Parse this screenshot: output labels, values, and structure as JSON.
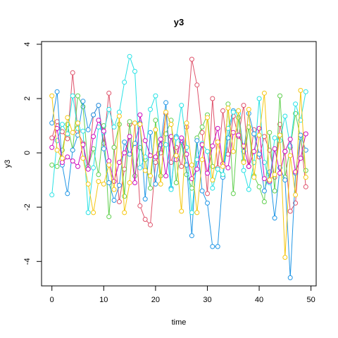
{
  "chart_data": {
    "type": "line",
    "title": "y3",
    "xlabel": "time",
    "ylabel": "y3",
    "xlim": [
      -2,
      51
    ],
    "ylim": [
      -4.9,
      4.1
    ],
    "xticks": [
      0,
      10,
      20,
      30,
      40,
      50
    ],
    "yticks": [
      -4,
      -2,
      0,
      2,
      4
    ],
    "grid": false,
    "legend": "none",
    "x": [
      0,
      1,
      2,
      3,
      4,
      5,
      6,
      7,
      8,
      9,
      10,
      11,
      12,
      13,
      14,
      15,
      16,
      17,
      18,
      19,
      20,
      21,
      22,
      23,
      24,
      25,
      26,
      27,
      28,
      29,
      30,
      31,
      32,
      33,
      34,
      35,
      36,
      37,
      38,
      39,
      40,
      41,
      42,
      43,
      44,
      45,
      46,
      47,
      48,
      49
    ],
    "series": [
      {
        "color": "#DF536B",
        "values": [
          0.55,
          1.15,
          0.78,
          0.52,
          2.95,
          0.78,
          0.35,
          -0.6,
          1.4,
          1.75,
          0.35,
          2.2,
          0.2,
          -1.8,
          -0.6,
          1.05,
          1.1,
          -1.95,
          -2.45,
          -2.65,
          -0.35,
          0.0,
          1.45,
          -0.35,
          0.2,
          -0.5,
          0.95,
          3.45,
          2.5,
          0.75,
          -1.5,
          2.0,
          -0.55,
          1.55,
          -0.05,
          1.35,
          0.6,
          1.75,
          -0.5,
          0.85,
          -0.15,
          0.6,
          0.1,
          -0.9,
          1.05,
          0.05,
          -2.15,
          -1.85,
          0.65,
          -1.25
        ]
      },
      {
        "color": "#61D04F",
        "values": [
          -0.45,
          -0.5,
          0.1,
          1.05,
          0.1,
          2.1,
          1.7,
          -0.5,
          0.15,
          -0.8,
          1.0,
          -2.35,
          0.2,
          1.05,
          -1.6,
          1.15,
          -0.85,
          0.2,
          -0.25,
          -1.3,
          1.2,
          -0.85,
          0.7,
          1.2,
          -1.1,
          0.4,
          -0.8,
          -1.3,
          0.55,
          0.95,
          1.4,
          -0.5,
          -0.6,
          -0.85,
          1.8,
          -1.5,
          1.3,
          -0.3,
          0.95,
          -0.85,
          -1.25,
          -1.8,
          0.75,
          -1.4,
          2.1,
          -0.9,
          0.2,
          1.45,
          0.55,
          -0.65
        ]
      },
      {
        "color": "#2297E6",
        "values": [
          1.1,
          2.25,
          -0.45,
          -1.5,
          0.1,
          0.65,
          1.9,
          0.85,
          1.4,
          1.75,
          0.15,
          -1.1,
          -1.75,
          -1.2,
          0.4,
          -0.05,
          0.35,
          1.1,
          -1.7,
          0.75,
          -1.15,
          0.3,
          1.85,
          -1.3,
          0.6,
          0.45,
          -0.45,
          -3.05,
          0.45,
          -1.4,
          -1.85,
          -3.45,
          -3.45,
          -0.9,
          0.55,
          1.55,
          1.55,
          0.05,
          1.45,
          0.7,
          -0.05,
          -1.4,
          -0.7,
          -2.4,
          -0.55,
          -1.0,
          -4.6,
          -0.75,
          0.65,
          0.1
        ]
      },
      {
        "color": "#28E2E5",
        "values": [
          -1.55,
          0.45,
          1.05,
          0.7,
          2.1,
          0.9,
          0.8,
          -2.2,
          -0.55,
          0.95,
          0.75,
          1.6,
          0.95,
          1.5,
          2.6,
          3.55,
          3.0,
          -0.55,
          -0.15,
          1.6,
          2.1,
          0.5,
          0.3,
          -1.35,
          0.55,
          1.75,
          0.2,
          -2.2,
          -0.25,
          0.35,
          0.05,
          -1.3,
          -0.6,
          -0.8,
          0.9,
          1.5,
          1.45,
          -0.65,
          -1.35,
          -0.35,
          2.0,
          -0.35,
          -1.1,
          0.55,
          0.45,
          1.35,
          0.25,
          1.8,
          1.2,
          2.25
        ]
      },
      {
        "color": "#CD0BBC",
        "values": [
          0.2,
          0.9,
          -0.35,
          -0.15,
          -0.3,
          -0.5,
          0.3,
          -0.6,
          0.6,
          1.2,
          0.8,
          -0.3,
          -1.05,
          -0.35,
          0.0,
          0.6,
          -1.1,
          1.4,
          0.45,
          -0.1,
          -0.15,
          0.5,
          -0.85,
          0.6,
          -0.25,
          0.55,
          -0.05,
          -0.95,
          -0.6,
          0.3,
          -0.75,
          0.25,
          0.9,
          -0.4,
          -0.55,
          0.75,
          0.65,
          0.25,
          -0.5,
          0.05,
          0.9,
          -0.95,
          -1.05,
          0.15,
          -0.75,
          0.05,
          0.5,
          -0.7,
          -0.2,
          0.7
        ]
      },
      {
        "color": "#F5C710",
        "values": [
          2.1,
          0.1,
          -0.2,
          1.3,
          0.75,
          1.1,
          -0.2,
          -1.15,
          -2.2,
          -1.05,
          -1.15,
          -0.45,
          -1.35,
          1.35,
          -2.2,
          -1.1,
          1.1,
          1.05,
          -0.65,
          -0.85,
          0.85,
          -1.15,
          1.5,
          1.05,
          -0.1,
          -2.15,
          1.1,
          -0.45,
          -2.2,
          -0.25,
          1.3,
          -1.0,
          0.4,
          -0.5,
          1.65,
          0.05,
          1.55,
          -0.35,
          1.6,
          -0.9,
          0.65,
          2.2,
          -1.0,
          -0.8,
          0.65,
          -3.85,
          -0.1,
          -1.55,
          2.3,
          -0.9
        ]
      }
    ]
  }
}
